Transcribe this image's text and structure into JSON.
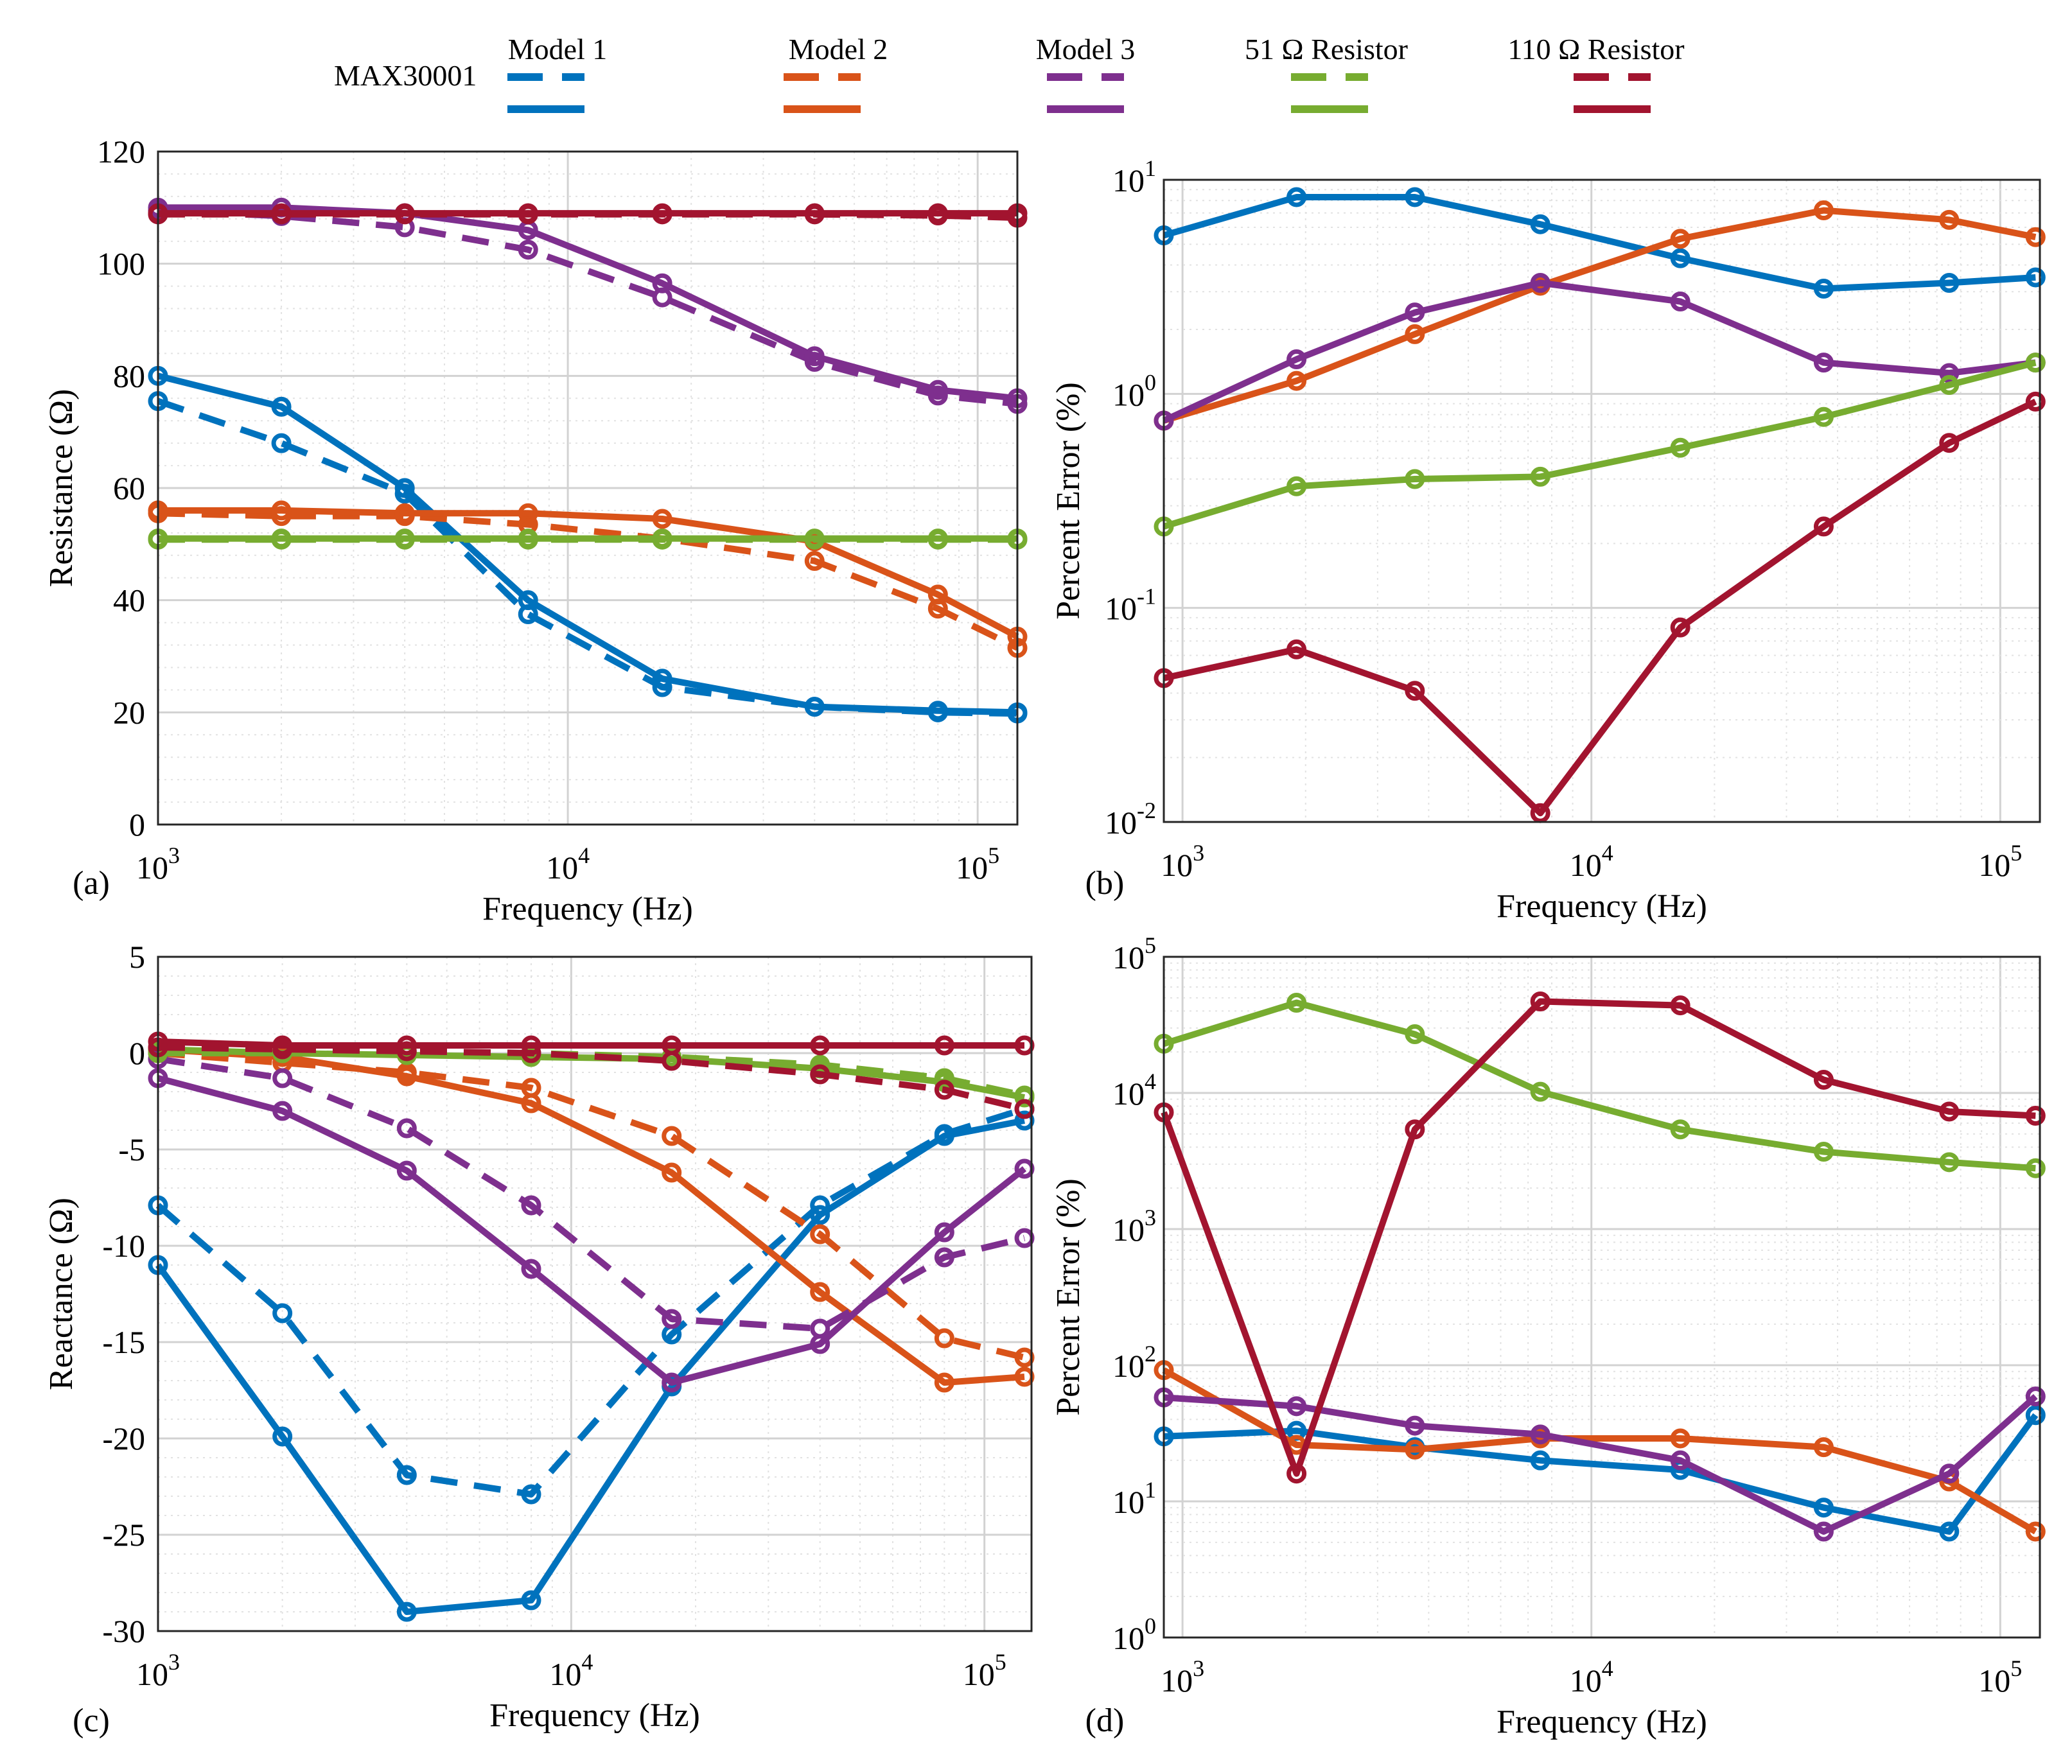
{
  "legend": {
    "title": "MAX30001",
    "entries": [
      {
        "label": "Model 1",
        "color": "#0072BD"
      },
      {
        "label": "Model 2",
        "color": "#D95319"
      },
      {
        "label": "Model 3",
        "color": "#7E2F8E"
      },
      {
        "label": "51 Ω Resistor",
        "color": "#77AC30"
      },
      {
        "label": "110 Ω Resistor",
        "color": "#A2142F"
      }
    ]
  },
  "chart_data": [
    {
      "id": "a",
      "panel_label": "(a)",
      "type": "line",
      "xscale": "log",
      "yscale": "linear",
      "xlabel": "Frequency (Hz)",
      "ylabel": "Resistance (Ω)",
      "xlim": [
        1000,
        125000
      ],
      "ylim": [
        0,
        120
      ],
      "yticks": [
        0,
        20,
        40,
        60,
        80,
        100,
        120
      ],
      "xticks": [
        1000,
        10000,
        100000
      ],
      "x": [
        1000,
        2000,
        4000,
        8000,
        17000,
        40000,
        80000,
        125000
      ],
      "series": [
        {
          "name": "Model 1",
          "style": "dashed",
          "color": "#0072BD",
          "values": [
            75.5,
            68,
            59,
            37.5,
            24.5,
            21,
            20,
            19.8
          ]
        },
        {
          "name": "Model 1",
          "style": "solid",
          "color": "#0072BD",
          "values": [
            80,
            74.5,
            60,
            40,
            26,
            21,
            20.3,
            20
          ]
        },
        {
          "name": "Model 2",
          "style": "dashed",
          "color": "#D95319",
          "values": [
            55.5,
            55,
            55,
            53.5,
            51,
            47,
            38.5,
            31.5
          ]
        },
        {
          "name": "Model 2",
          "style": "solid",
          "color": "#D95319",
          "values": [
            56,
            56,
            55.5,
            55.5,
            54.5,
            50.5,
            41,
            33.5
          ]
        },
        {
          "name": "Model 3",
          "style": "dashed",
          "color": "#7E2F8E",
          "values": [
            109.5,
            108.5,
            106.5,
            102.5,
            94,
            82.5,
            76.5,
            75
          ]
        },
        {
          "name": "Model 3",
          "style": "solid",
          "color": "#7E2F8E",
          "values": [
            110,
            110,
            109,
            106,
            96.5,
            83.5,
            77.5,
            76
          ]
        },
        {
          "name": "51 Ω Resistor",
          "style": "dashed",
          "color": "#77AC30",
          "values": [
            50.8,
            50.8,
            50.8,
            50.8,
            50.8,
            50.8,
            50.8,
            50.8
          ]
        },
        {
          "name": "51 Ω Resistor",
          "style": "solid",
          "color": "#77AC30",
          "values": [
            51,
            51,
            51,
            51,
            51,
            51,
            51,
            51
          ]
        },
        {
          "name": "110 Ω Resistor",
          "style": "dashed",
          "color": "#A2142F",
          "values": [
            108.8,
            108.8,
            108.8,
            108.8,
            108.8,
            108.8,
            108.6,
            108.2
          ]
        },
        {
          "name": "110 Ω Resistor",
          "style": "solid",
          "color": "#A2142F",
          "values": [
            109,
            109,
            109,
            109,
            109,
            109,
            109,
            109
          ]
        }
      ]
    },
    {
      "id": "b",
      "panel_label": "(b)",
      "type": "line",
      "xscale": "log",
      "yscale": "log",
      "xlabel": "Frequency (Hz)",
      "ylabel": "Percent Error (%)",
      "xlim": [
        900,
        125000
      ],
      "ylim": [
        0.01,
        10
      ],
      "yticks": [
        {
          "base": "10",
          "exp": "-2"
        },
        {
          "base": "10",
          "exp": "-1"
        },
        {
          "base": "10",
          "exp": "0"
        },
        {
          "base": "10",
          "exp": "1"
        }
      ],
      "xticks": [
        1000,
        10000,
        100000
      ],
      "x": [
        900,
        1900,
        3700,
        7500,
        16500,
        37000,
        75000,
        122000
      ],
      "series": [
        {
          "name": "Model 1",
          "style": "solid",
          "color": "#0072BD",
          "values": [
            5.5,
            8.3,
            8.3,
            6.2,
            4.3,
            3.1,
            3.3,
            3.5
          ]
        },
        {
          "name": "Model 2",
          "style": "solid",
          "color": "#D95319",
          "values": [
            0.75,
            1.15,
            1.9,
            3.2,
            5.3,
            7.2,
            6.5,
            5.4
          ]
        },
        {
          "name": "Model 3",
          "style": "solid",
          "color": "#7E2F8E",
          "values": [
            0.75,
            1.45,
            2.4,
            3.3,
            2.7,
            1.4,
            1.25,
            1.4
          ]
        },
        {
          "name": "51 Ω Resistor",
          "style": "solid",
          "color": "#77AC30",
          "values": [
            0.24,
            0.37,
            0.4,
            0.41,
            0.56,
            0.78,
            1.1,
            1.4
          ]
        },
        {
          "name": "110 Ω Resistor",
          "style": "solid",
          "color": "#A2142F",
          "values": [
            0.047,
            0.064,
            0.041,
            0.011,
            0.081,
            0.24,
            0.59,
            0.92
          ]
        }
      ]
    },
    {
      "id": "c",
      "panel_label": "(c)",
      "type": "line",
      "xscale": "log",
      "yscale": "linear",
      "xlabel": "Frequency (Hz)",
      "ylabel": "Reactance (Ω)",
      "xlim": [
        1000,
        130000
      ],
      "ylim": [
        -30,
        5
      ],
      "yticks": [
        -30,
        -25,
        -20,
        -15,
        -10,
        -5,
        0,
        5
      ],
      "xticks": [
        1000,
        10000,
        100000
      ],
      "x": [
        1000,
        2000,
        4000,
        8000,
        17500,
        40000,
        80000,
        125000
      ],
      "series": [
        {
          "name": "Model 1",
          "style": "dashed",
          "color": "#0072BD",
          "values": [
            -7.9,
            -13.5,
            -21.9,
            -22.9,
            -14.6,
            -7.9,
            -4.2,
            -2.9
          ]
        },
        {
          "name": "Model 1",
          "style": "solid",
          "color": "#0072BD",
          "values": [
            -11,
            -19.9,
            -29,
            -28.4,
            -17.3,
            -8.4,
            -4.3,
            -3.5
          ]
        },
        {
          "name": "Model 2",
          "style": "dashed",
          "color": "#D95319",
          "values": [
            0,
            -0.5,
            -1,
            -1.8,
            -4.3,
            -9.4,
            -14.8,
            -15.8
          ]
        },
        {
          "name": "Model 2",
          "style": "solid",
          "color": "#D95319",
          "values": [
            0.2,
            -0.2,
            -1.2,
            -2.6,
            -6.2,
            -12.4,
            -17.1,
            -16.8
          ]
        },
        {
          "name": "Model 3",
          "style": "dashed",
          "color": "#7E2F8E",
          "values": [
            -0.3,
            -1.3,
            -3.9,
            -7.9,
            -13.8,
            -14.3,
            -10.6,
            -9.6
          ]
        },
        {
          "name": "Model 3",
          "style": "solid",
          "color": "#7E2F8E",
          "values": [
            -1.3,
            -3,
            -6.1,
            -11.2,
            -17.1,
            -15.1,
            -9.3,
            -6
          ]
        },
        {
          "name": "51 Ω Resistor",
          "style": "dashed",
          "color": "#77AC30",
          "values": [
            0,
            0,
            0,
            0,
            -0.2,
            -0.6,
            -1.3,
            -2.2
          ]
        },
        {
          "name": "51 Ω Resistor",
          "style": "solid",
          "color": "#77AC30",
          "values": [
            0.2,
            0,
            -0.1,
            -0.2,
            -0.3,
            -0.8,
            -1.5,
            -2.3
          ]
        },
        {
          "name": "110 Ω Resistor",
          "style": "dashed",
          "color": "#A2142F",
          "values": [
            0.3,
            0.2,
            0.1,
            0,
            -0.4,
            -1.1,
            -1.9,
            -2.9
          ]
        },
        {
          "name": "110 Ω Resistor",
          "style": "solid",
          "color": "#A2142F",
          "values": [
            0.6,
            0.4,
            0.4,
            0.4,
            0.4,
            0.4,
            0.4,
            0.4
          ]
        }
      ]
    },
    {
      "id": "d",
      "panel_label": "(d)",
      "type": "line",
      "xscale": "log",
      "yscale": "log",
      "xlabel": "Frequency (Hz)",
      "ylabel": "Percent Error (%)",
      "xlim": [
        900,
        125000
      ],
      "ylim": [
        1,
        100000
      ],
      "yticks": [
        {
          "base": "10",
          "exp": "0"
        },
        {
          "base": "10",
          "exp": "1"
        },
        {
          "base": "10",
          "exp": "2"
        },
        {
          "base": "10",
          "exp": "3"
        },
        {
          "base": "10",
          "exp": "4"
        },
        {
          "base": "10",
          "exp": "5"
        }
      ],
      "xticks": [
        1000,
        10000,
        100000
      ],
      "x": [
        900,
        1900,
        3700,
        7500,
        16500,
        37000,
        75000,
        122000
      ],
      "series": [
        {
          "name": "Model 1",
          "style": "solid",
          "color": "#0072BD",
          "values": [
            30,
            33,
            25,
            20,
            17,
            9,
            6,
            43
          ]
        },
        {
          "name": "Model 2",
          "style": "solid",
          "color": "#D95319",
          "values": [
            92,
            26,
            24,
            29,
            29,
            25,
            14,
            6
          ]
        },
        {
          "name": "Model 3",
          "style": "solid",
          "color": "#7E2F8E",
          "values": [
            58,
            50,
            36,
            31,
            20,
            6,
            16,
            59
          ]
        },
        {
          "name": "51 Ω Resistor",
          "style": "solid",
          "color": "#77AC30",
          "values": [
            23000,
            46000,
            27000,
            10200,
            5400,
            3700,
            3100,
            2800
          ]
        },
        {
          "name": "110 Ω Resistor",
          "style": "solid",
          "color": "#A2142F",
          "values": [
            7200,
            16,
            5400,
            47000,
            44000,
            12500,
            7300,
            6800
          ]
        }
      ]
    }
  ]
}
